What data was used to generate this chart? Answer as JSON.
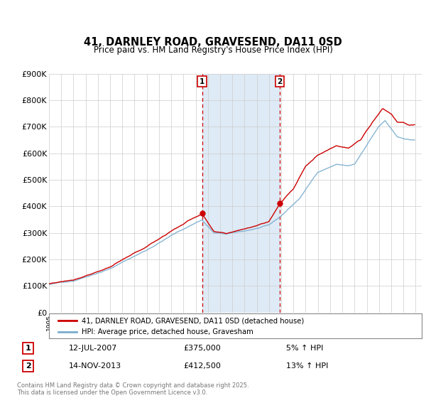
{
  "title": "41, DARNLEY ROAD, GRAVESEND, DA11 0SD",
  "subtitle": "Price paid vs. HM Land Registry's House Price Index (HPI)",
  "ylim": [
    0,
    900000
  ],
  "yticks": [
    0,
    100000,
    200000,
    300000,
    400000,
    500000,
    600000,
    700000,
    800000,
    900000
  ],
  "ytick_labels": [
    "£0",
    "£100K",
    "£200K",
    "£300K",
    "£400K",
    "£500K",
    "£600K",
    "£700K",
    "£800K",
    "£900K"
  ],
  "sale1": {
    "year": 2007.53,
    "price": 375000,
    "label": "1",
    "date": "12-JUL-2007",
    "pct": "5% ↑ HPI"
  },
  "sale2": {
    "year": 2013.87,
    "price": 412500,
    "label": "2",
    "date": "14-NOV-2013",
    "pct": "13% ↑ HPI"
  },
  "line_color_red": "#cc0000",
  "line_color_blue": "#7aadcf",
  "shade_color": "#deeaf5",
  "vline_color": "#cc0000",
  "background_color": "#ffffff",
  "grid_color": "#cccccc",
  "legend_label_red": "41, DARNLEY ROAD, GRAVESEND, DA11 0SD (detached house)",
  "legend_label_blue": "HPI: Average price, detached house, Gravesham",
  "footer": "Contains HM Land Registry data © Crown copyright and database right 2025.\nThis data is licensed under the Open Government Licence v3.0.",
  "title_fontsize": 11,
  "subtitle_fontsize": 9,
  "axis_fontsize": 8
}
